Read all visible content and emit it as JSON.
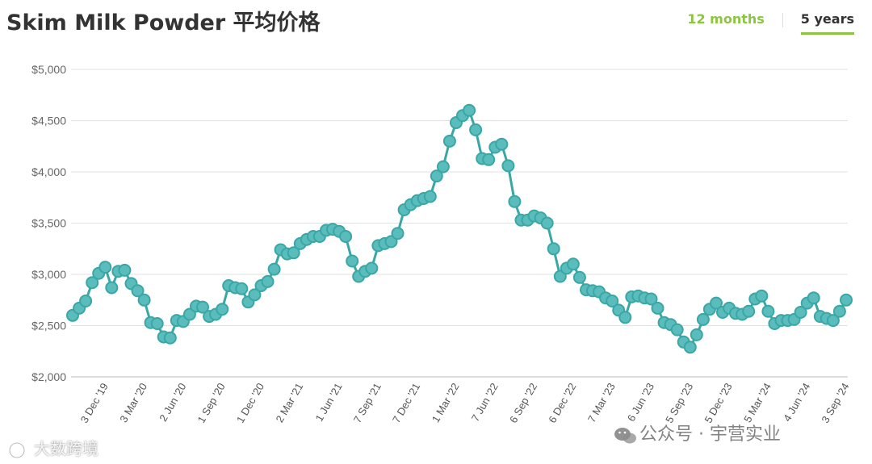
{
  "header": {
    "title": "Skim Milk Powder 平均价格",
    "tabs": [
      {
        "label": "12 months",
        "active": false
      },
      {
        "label": "5 years",
        "active": true
      }
    ]
  },
  "colors": {
    "series": "#3aa7a7",
    "marker_fill": "#5bbcbc",
    "tab_active_underline": "#8cc63f",
    "tab_inactive": "#8cc63f"
  },
  "chart_data": {
    "type": "line",
    "title": "Skim Milk Powder 平均价格",
    "xlabel": "",
    "ylabel": "",
    "ylim": [
      2000,
      5000
    ],
    "yticks": [
      2000,
      2500,
      3000,
      3500,
      4000,
      4500,
      5000
    ],
    "ytick_labels": [
      "$2,000",
      "$2,500",
      "$3,000",
      "$3,500",
      "$4,000",
      "$4,500",
      "$5,000"
    ],
    "grid": true,
    "legend": "none",
    "xtick_labels": [
      {
        "label": "3 Dec '19",
        "index": 5
      },
      {
        "label": "3 Mar '20",
        "index": 11
      },
      {
        "label": "2 Jun '20",
        "index": 17
      },
      {
        "label": "1 Sep '20",
        "index": 23
      },
      {
        "label": "1 Dec '20",
        "index": 29
      },
      {
        "label": "2 Mar '21",
        "index": 35
      },
      {
        "label": "1 Jun '21",
        "index": 41
      },
      {
        "label": "7 Sep '21",
        "index": 47
      },
      {
        "label": "7 Dec '21",
        "index": 53
      },
      {
        "label": "1 Mar '22",
        "index": 59
      },
      {
        "label": "7 Jun '22",
        "index": 65
      },
      {
        "label": "6 Sep '22",
        "index": 71
      },
      {
        "label": "6 Dec '22",
        "index": 77
      },
      {
        "label": "7 Mar '23",
        "index": 83
      },
      {
        "label": "6 Jun '23",
        "index": 89
      },
      {
        "label": "5 Sep '23",
        "index": 95
      },
      {
        "label": "5 Dec '23",
        "index": 101
      },
      {
        "label": "5 Mar '24",
        "index": 107
      },
      {
        "label": "4 Jun '24",
        "index": 113
      },
      {
        "label": "3 Sep '24",
        "index": 119
      }
    ],
    "series": [
      {
        "values": [
          2600,
          2670,
          2740,
          2920,
          3010,
          3070,
          2870,
          3030,
          3040,
          2910,
          2840,
          2750,
          2530,
          2520,
          2390,
          2380,
          2550,
          2540,
          2610,
          2690,
          2680,
          2590,
          2610,
          2660,
          2890,
          2870,
          2860,
          2730,
          2800,
          2890,
          2930,
          3050,
          3240,
          3200,
          3210,
          3300,
          3340,
          3370,
          3370,
          3430,
          3440,
          3420,
          3370,
          3130,
          2980,
          3030,
          3060,
          3280,
          3300,
          3320,
          3400,
          3630,
          3680,
          3720,
          3740,
          3760,
          3960,
          4050,
          4300,
          4480,
          4550,
          4600,
          4410,
          4130,
          4120,
          4240,
          4270,
          4060,
          3710,
          3530,
          3530,
          3570,
          3550,
          3500,
          3250,
          2980,
          3060,
          3100,
          2970,
          2850,
          2840,
          2830,
          2770,
          2740,
          2650,
          2580,
          2780,
          2790,
          2770,
          2760,
          2670,
          2530,
          2510,
          2460,
          2340,
          2290,
          2410,
          2560,
          2660,
          2720,
          2630,
          2670,
          2620,
          2610,
          2640,
          2760,
          2790,
          2640,
          2520,
          2550,
          2550,
          2560,
          2630,
          2720,
          2770,
          2590,
          2570,
          2550,
          2640,
          2750
        ]
      }
    ]
  },
  "watermarks": {
    "left": "大数跨境",
    "right": "公众号 · 宇营实业"
  }
}
